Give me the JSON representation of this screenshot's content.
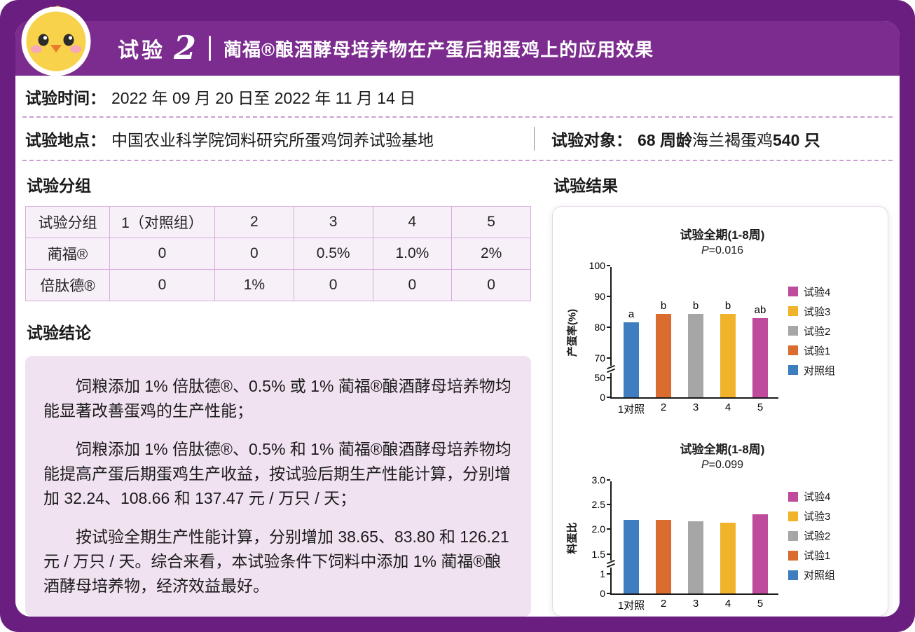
{
  "theme": {
    "frame": "#6A1F80",
    "topbar": "#7C2B8E",
    "lavender": "#F1E2F2",
    "table_border": "#D8ABDC",
    "table_bg": "#F8F0F9",
    "dash": "#C99FD2"
  },
  "header": {
    "trial_label": "试验",
    "trial_number": "2",
    "title": "蔺福®酿酒酵母培养物在产蛋后期蛋鸡上的应用效果"
  },
  "info": {
    "time_label": "试验时间：",
    "time_value": "2022 年 09 月 20 日至 2022 年 11 月 14 日",
    "location_label": "试验地点：",
    "location_value": "中国农业科学院饲料研究所蛋鸡饲养试验基地",
    "subject_label": "试验对象：",
    "subject_bold1": "68 周龄",
    "subject_mid": "海兰褐蛋鸡 ",
    "subject_bold2": "540 只"
  },
  "grouping": {
    "heading": "试验分组",
    "table": {
      "rows": [
        [
          "试验分组",
          "1（对照组）",
          "2",
          "3",
          "4",
          "5"
        ],
        [
          "蔺福®",
          "0",
          "0",
          "0.5%",
          "1.0%",
          "2%"
        ],
        [
          "倍肽德®",
          "0",
          "1%",
          "0",
          "0",
          "0"
        ]
      ]
    }
  },
  "conclusion": {
    "heading": "试验结论",
    "paragraphs": [
      "饲粮添加 1% 倍肽德®、0.5% 或 1% 蔺福®酿酒酵母培养物均能显著改善蛋鸡的生产性能；",
      "饲粮添加 1% 倍肽德®、0.5% 和 1% 蔺福®酿酒酵母培养物均能提高产蛋后期蛋鸡生产收益，按试验后期生产性能计算，分别增加 32.24、108.66 和 137.47 元 / 万只 / 天；",
      "按试验全期生产性能计算，分别增加 38.65、83.80 和 126.21 元 / 万只 / 天。综合来看，本试验条件下饲料中添加 1% 蔺福®酿酒酵母培养物，经济效益最好。"
    ]
  },
  "results": {
    "heading": "试验结果"
  },
  "chart_data": [
    {
      "type": "bar",
      "title": "试验全期(1-8周)",
      "p_symbol": "P",
      "p_rest": "=0.016",
      "ylabel": "产蛋率(%)",
      "categories": [
        "1对照",
        "2",
        "3",
        "4",
        "5"
      ],
      "values": [
        81.5,
        84.3,
        84.2,
        84.2,
        83.0
      ],
      "letters": [
        "a",
        "b",
        "b",
        "b",
        "ab"
      ],
      "colors": [
        "#3E7EC0",
        "#D96C2E",
        "#A6A6A6",
        "#F0B32A",
        "#BE4B9B"
      ],
      "ylim": [
        0,
        100
      ],
      "yticks": [
        {
          "label": "0",
          "v": 0
        },
        {
          "label": "50",
          "v": 50
        },
        {
          "label": "70",
          "v": 70
        },
        {
          "label": "80",
          "v": 80
        },
        {
          "label": "90",
          "v": 90
        },
        {
          "label": "100",
          "v": 100
        }
      ],
      "scale": [
        {
          "v": 0,
          "f": 0
        },
        {
          "v": 50,
          "f": 0.15
        },
        {
          "v": 70,
          "f": 0.3
        },
        {
          "v": 80,
          "f": 0.533
        },
        {
          "v": 90,
          "f": 0.767
        },
        {
          "v": 100,
          "f": 1
        }
      ],
      "break_frac": 0.215,
      "legend": [
        {
          "label": "试验4",
          "color": "#BE4B9B"
        },
        {
          "label": "试验3",
          "color": "#F0B32A"
        },
        {
          "label": "试验2",
          "color": "#A6A6A6"
        },
        {
          "label": "试验1",
          "color": "#D96C2E"
        },
        {
          "label": "对照组",
          "color": "#3E7EC0"
        }
      ]
    },
    {
      "type": "bar",
      "title": "试验全期(1-8周)",
      "p_symbol": "P",
      "p_rest": "=0.099",
      "ylabel": "料蛋比",
      "categories": [
        "1对照",
        "2",
        "3",
        "4",
        "5"
      ],
      "values": [
        2.2,
        2.2,
        2.17,
        2.14,
        2.31
      ],
      "letters": [],
      "colors": [
        "#3E7EC0",
        "#D96C2E",
        "#A6A6A6",
        "#F0B32A",
        "#BE4B9B"
      ],
      "ylim": [
        0,
        3
      ],
      "yticks": [
        {
          "label": "0",
          "v": 0
        },
        {
          "label": "1",
          "v": 1
        },
        {
          "label": "1.5",
          "v": 1.5
        },
        {
          "label": "2.0",
          "v": 2
        },
        {
          "label": "2.5",
          "v": 2.5
        },
        {
          "label": "3.0",
          "v": 3
        }
      ],
      "scale": [
        {
          "v": 0,
          "f": 0
        },
        {
          "v": 1,
          "f": 0.17
        },
        {
          "v": 1.5,
          "f": 0.345
        },
        {
          "v": 2,
          "f": 0.563
        },
        {
          "v": 2.5,
          "f": 0.781
        },
        {
          "v": 3,
          "f": 1
        }
      ],
      "break_frac": 0.255,
      "legend": [
        {
          "label": "试验4",
          "color": "#BE4B9B"
        },
        {
          "label": "试验3",
          "color": "#F0B32A"
        },
        {
          "label": "试验2",
          "color": "#A6A6A6"
        },
        {
          "label": "试验1",
          "color": "#D96C2E"
        },
        {
          "label": "对照组",
          "color": "#3E7EC0"
        }
      ]
    }
  ]
}
